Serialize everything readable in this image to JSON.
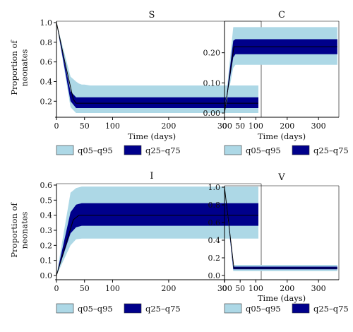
{
  "legend": {
    "outer": {
      "label": "q05–q95",
      "color": "#add8e6"
    },
    "inner": {
      "label": "q25–q75",
      "color": "#00008b"
    }
  },
  "colors": {
    "median_line": "#000000",
    "axis": "#000000"
  },
  "chart_data": [
    {
      "type": "area",
      "title": "S",
      "xlabel": "Time (days)",
      "ylabel": "Proportion of neonates",
      "xlim": [
        0,
        365
      ],
      "ylim": [
        0.08,
        1.0
      ],
      "xticks": [
        0,
        50,
        100,
        200,
        300
      ],
      "xtick_labels": [
        "0",
        "50",
        "100",
        "200",
        "300"
      ],
      "yticks": [
        0.2,
        0.4,
        0.6,
        0.8,
        1.0
      ],
      "ytick_labels": [
        "0.2",
        "0.4",
        "0.6",
        "0.8",
        "1.0"
      ],
      "grid": false,
      "legend_position": "bottom",
      "series": [
        {
          "name": "q05–q95",
          "x": [
            0,
            25,
            35,
            40,
            45,
            50,
            60,
            80,
            100,
            150,
            360
          ],
          "lower": [
            1.0,
            0.14,
            0.08,
            0.08,
            0.08,
            0.08,
            0.08,
            0.08,
            0.08,
            0.08,
            0.08
          ],
          "upper": [
            1.0,
            0.45,
            0.4,
            0.38,
            0.37,
            0.37,
            0.36,
            0.36,
            0.36,
            0.36,
            0.36
          ]
        },
        {
          "name": "q25–q75",
          "x": [
            0,
            25,
            35,
            40,
            50,
            80,
            360
          ],
          "lower": [
            1.0,
            0.2,
            0.13,
            0.13,
            0.13,
            0.13,
            0.13
          ],
          "upper": [
            1.0,
            0.3,
            0.24,
            0.24,
            0.24,
            0.24,
            0.24
          ]
        },
        {
          "name": "median",
          "x": [
            0,
            15,
            30,
            35,
            360
          ],
          "y": [
            1.0,
            0.6,
            0.22,
            0.18,
            0.18
          ]
        }
      ]
    },
    {
      "type": "area",
      "title": "C",
      "xlabel": "Time (days)",
      "ylabel": "",
      "xlim": [
        0,
        365
      ],
      "ylim": [
        0.0,
        0.3
      ],
      "xticks": [
        0,
        50,
        100,
        200,
        300
      ],
      "xtick_labels": [
        "0",
        "50",
        "100",
        "200",
        "300"
      ],
      "yticks": [
        0.0,
        0.1,
        0.2
      ],
      "ytick_labels": [
        "0.00",
        "0.10",
        "0.20"
      ],
      "grid": false,
      "legend_position": "bottom",
      "series": [
        {
          "name": "q05–q95",
          "x": [
            0,
            28,
            35,
            360
          ],
          "lower": [
            0.0,
            0.15,
            0.16,
            0.16
          ],
          "upper": [
            0.0,
            0.285,
            0.285,
            0.285
          ]
        },
        {
          "name": "q25–q75",
          "x": [
            0,
            28,
            35,
            360
          ],
          "lower": [
            0.0,
            0.185,
            0.195,
            0.195
          ],
          "upper": [
            0.0,
            0.24,
            0.245,
            0.245
          ]
        },
        {
          "name": "median",
          "x": [
            0,
            30,
            360
          ],
          "y": [
            0.0,
            0.22,
            0.22
          ]
        }
      ]
    },
    {
      "type": "area",
      "title": "I",
      "xlabel": "",
      "ylabel": "Proportion of neonates",
      "xlim": [
        0,
        365
      ],
      "ylim": [
        0.0,
        0.6
      ],
      "xticks": [
        0,
        50,
        100,
        200,
        300
      ],
      "xtick_labels": [
        "0",
        "50",
        "100",
        "200",
        "300"
      ],
      "yticks": [
        0.0,
        0.1,
        0.2,
        0.3,
        0.4,
        0.5,
        0.6
      ],
      "ytick_labels": [
        "0.0",
        "0.1",
        "0.2",
        "0.3",
        "0.4",
        "0.5",
        "0.6"
      ],
      "grid": false,
      "legend_position": "bottom",
      "series": [
        {
          "name": "q05–q95",
          "x": [
            0,
            25,
            35,
            45,
            360
          ],
          "lower": [
            0.0,
            0.2,
            0.24,
            0.245,
            0.245
          ],
          "upper": [
            0.0,
            0.55,
            0.58,
            0.59,
            0.59
          ]
        },
        {
          "name": "q25–q75",
          "x": [
            0,
            25,
            35,
            45,
            360
          ],
          "lower": [
            0.0,
            0.28,
            0.32,
            0.33,
            0.33
          ],
          "upper": [
            0.0,
            0.42,
            0.47,
            0.48,
            0.48
          ]
        },
        {
          "name": "median",
          "x": [
            0,
            30,
            40,
            360
          ],
          "y": [
            0.0,
            0.37,
            0.4,
            0.4
          ]
        }
      ]
    },
    {
      "type": "area",
      "title": "V",
      "xlabel": "Time (days)",
      "ylabel": "",
      "xlim": [
        0,
        365
      ],
      "ylim": [
        0.0,
        1.0
      ],
      "xticks": [
        0,
        50,
        100,
        200,
        300
      ],
      "xtick_labels": [
        "0",
        "50",
        "100",
        "200",
        "300"
      ],
      "yticks": [
        0.0,
        0.2,
        0.4,
        0.6,
        0.8,
        1.0
      ],
      "ytick_labels": [
        "0.0",
        "0.2",
        "0.4",
        "0.6",
        "0.8",
        "1.0"
      ],
      "grid": false,
      "legend_position": "bottom",
      "series": [
        {
          "name": "q05–q95",
          "x": [
            0,
            28,
            32,
            360
          ],
          "lower": [
            1.0,
            0.05,
            0.05,
            0.05
          ],
          "upper": [
            1.0,
            0.12,
            0.12,
            0.12
          ]
        },
        {
          "name": "q25–q75",
          "x": [
            0,
            28,
            32,
            360
          ],
          "lower": [
            1.0,
            0.07,
            0.07,
            0.07
          ],
          "upper": [
            1.0,
            0.1,
            0.1,
            0.1
          ]
        },
        {
          "name": "median",
          "x": [
            0,
            30,
            360
          ],
          "y": [
            1.0,
            0.085,
            0.085
          ]
        }
      ]
    }
  ]
}
